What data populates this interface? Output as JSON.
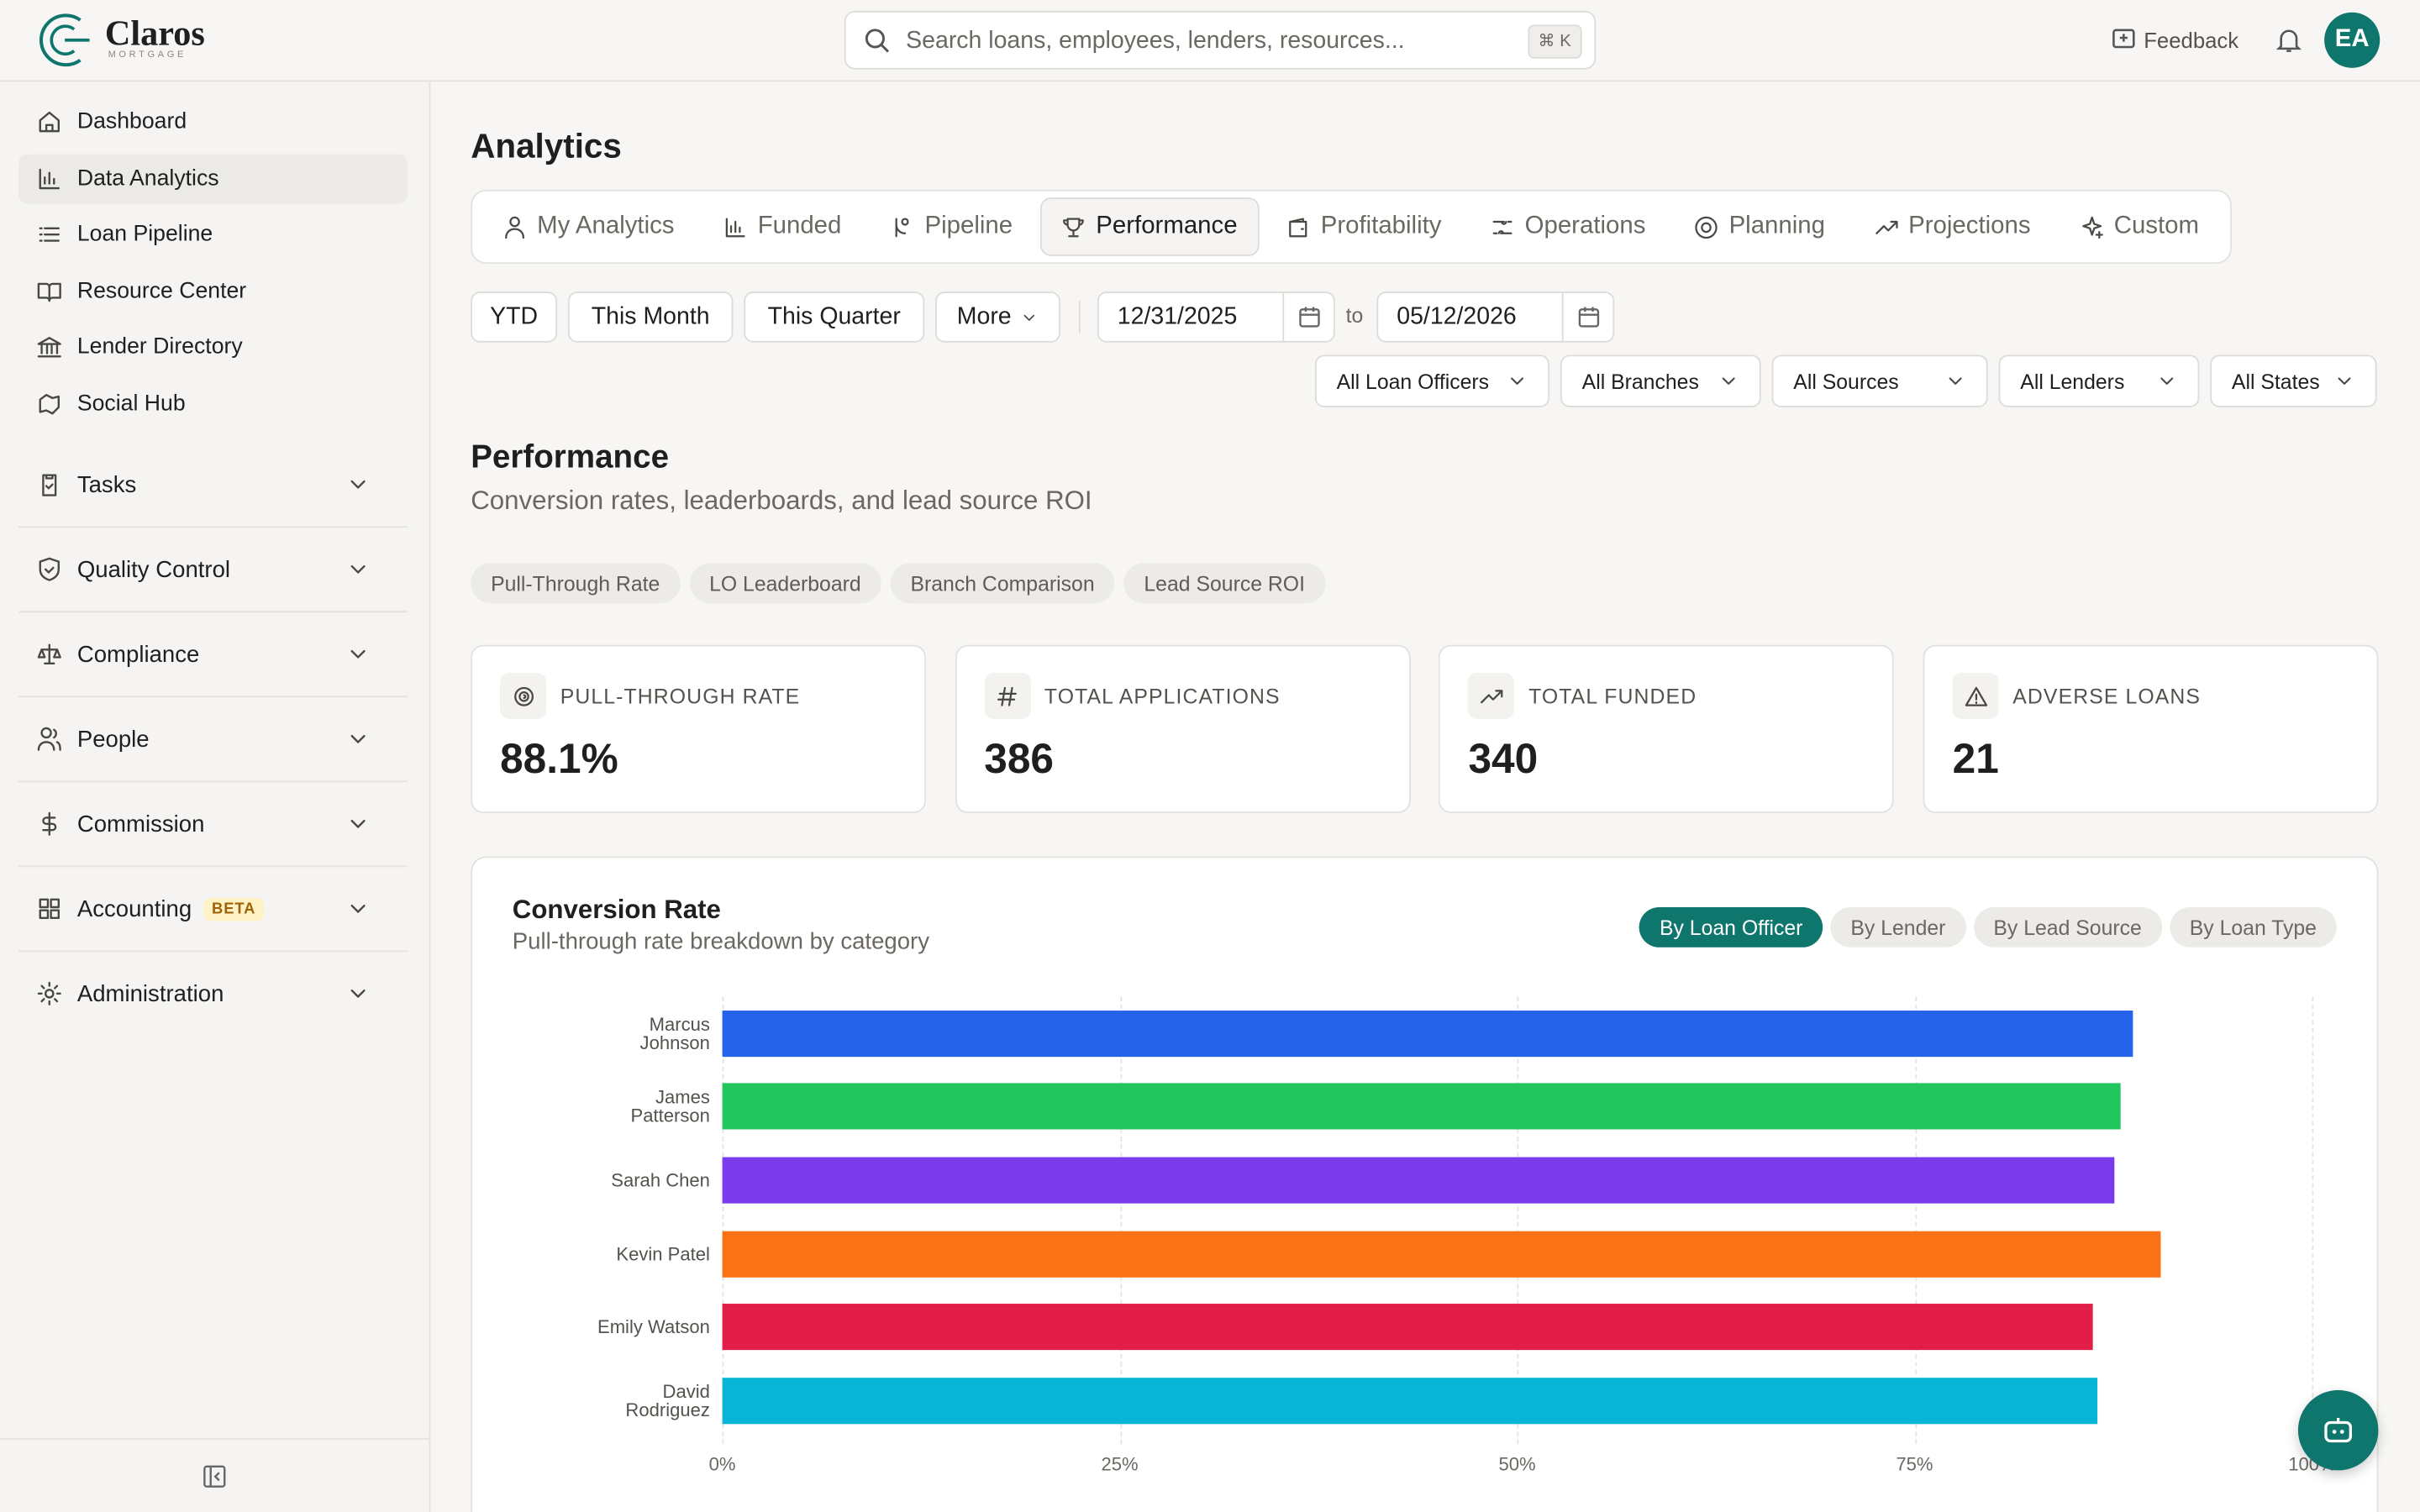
{
  "brand": {
    "name": "Claros",
    "tagline": "MORTGAGE"
  },
  "search": {
    "placeholder": "Search loans, employees, lenders, resources...",
    "shortcut": "⌘ K"
  },
  "header_actions": {
    "feedback": "Feedback",
    "avatar": "EA"
  },
  "sidebar": {
    "links": [
      "Dashboard",
      "Data Analytics",
      "Loan Pipeline",
      "Resource Center",
      "Lender Directory",
      "Social Hub"
    ],
    "active": 1,
    "groups": [
      "Tasks",
      "Quality Control",
      "Compliance",
      "People",
      "Commission",
      "Accounting",
      "Administration"
    ],
    "beta": "BETA"
  },
  "page": {
    "title": "Analytics",
    "tabs": [
      "My Analytics",
      "Funded",
      "Pipeline",
      "Performance",
      "Profitability",
      "Operations",
      "Planning",
      "Projections",
      "Custom"
    ],
    "active_tab": 3,
    "ranges": [
      "YTD",
      "This Month",
      "This Quarter",
      "More"
    ],
    "date_from": "12/31/2025",
    "date_sep": "to",
    "date_to": "05/12/2026",
    "filters": [
      "All Loan Officers",
      "All Branches",
      "All Sources",
      "All Lenders",
      "All States"
    ],
    "section_title": "Performance",
    "section_subtitle": "Conversion rates, leaderboards, and lead source ROI",
    "subtabs": [
      "Pull-Through Rate",
      "LO Leaderboard",
      "Branch Comparison",
      "Lead Source ROI"
    ],
    "kpis": [
      {
        "label": "PULL-THROUGH RATE",
        "value": 88.1,
        "value_label": "88.1%"
      },
      {
        "label": "TOTAL APPLICATIONS",
        "value": 386
      },
      {
        "label": "TOTAL FUNDED",
        "value": 340
      },
      {
        "label": "ADVERSE LOANS",
        "value": 21
      }
    ]
  },
  "chart_data": {
    "type": "bar",
    "orientation": "horizontal",
    "title": "Conversion Rate",
    "subtitle": "Pull-through rate breakdown by category",
    "views": [
      "By Loan Officer",
      "By Lender",
      "By Lead Source",
      "By Loan Type"
    ],
    "active_view": 0,
    "categories": [
      "Marcus Johnson",
      "James Patterson",
      "Sarah Chen",
      "Kevin Patel",
      "Emily Watson",
      "David Rodriguez"
    ],
    "values": [
      88.7,
      88.0,
      87.6,
      90.5,
      86.2,
      86.5
    ],
    "colors": [
      "#2563eb",
      "#22c55e",
      "#7c3aed",
      "#f97316",
      "#e11d48",
      "#06b6d4"
    ],
    "xlim": [
      0,
      100
    ],
    "xticks": [
      {
        "value": 0,
        "label": "0%"
      },
      {
        "value": 25,
        "label": "25%"
      },
      {
        "value": 50,
        "label": "50%"
      },
      {
        "value": 75,
        "label": "75%"
      },
      {
        "value": 100,
        "label": "100%"
      }
    ],
    "grid": true
  }
}
